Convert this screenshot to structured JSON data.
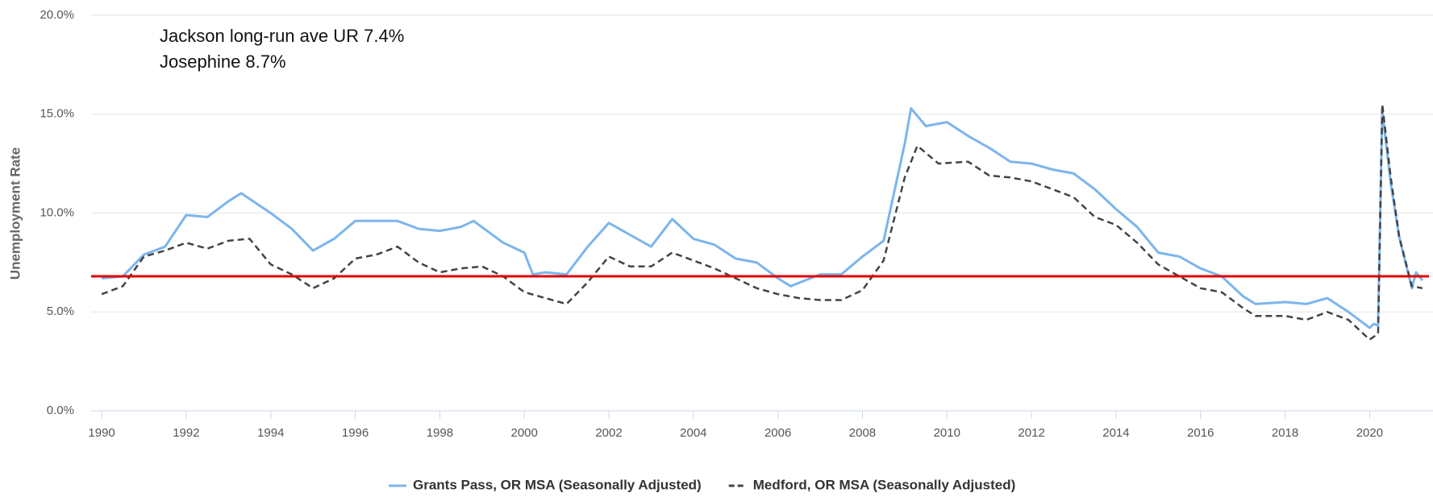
{
  "chart_data": {
    "type": "line",
    "y_label": "Unemployment Rate",
    "annotations": [
      "Jackson long-run ave UR 7.4%",
      "Josephine 8.7%"
    ],
    "reference_line": {
      "value": 6.8,
      "color": "#e00000"
    },
    "xlim": [
      1989.75,
      2021.5
    ],
    "ylim": [
      0,
      20
    ],
    "xticks": [
      1990,
      1992,
      1994,
      1996,
      1998,
      2000,
      2002,
      2004,
      2006,
      2008,
      2010,
      2012,
      2014,
      2016,
      2018,
      2020
    ],
    "yticks": [
      {
        "value": 0,
        "label": "0.0%"
      },
      {
        "value": 5,
        "label": "5.0%"
      },
      {
        "value": 10,
        "label": "10.0%"
      },
      {
        "value": 15,
        "label": "15.0%"
      },
      {
        "value": 20,
        "label": "20.0%"
      }
    ],
    "grid": true,
    "legend": "bottom",
    "series": [
      {
        "name": "Grants Pass, OR MSA (Seasonally Adjusted)",
        "color": "#7cb5ec",
        "dash": false,
        "x": [
          1990,
          1990.5,
          1991,
          1991.5,
          1992,
          1992.5,
          1993,
          1993.3,
          1994,
          1994.5,
          1995,
          1995.5,
          1996,
          1996.5,
          1997,
          1997.5,
          1998,
          1998.5,
          1998.8,
          1999.5,
          2000,
          2000.2,
          2000.5,
          2001,
          2001.5,
          2002,
          2002.5,
          2003,
          2003.5,
          2004,
          2004.5,
          2005,
          2005.5,
          2006,
          2006.3,
          2007,
          2007.5,
          2008,
          2008.5,
          2009,
          2009.15,
          2009.5,
          2010,
          2010.5,
          2011,
          2011.5,
          2012,
          2012.5,
          2013,
          2013.5,
          2014,
          2014.5,
          2015,
          2015.5,
          2016,
          2016.5,
          2017,
          2017.3,
          2018,
          2018.5,
          2019,
          2019.5,
          2020,
          2020.1,
          2020.2,
          2020.3,
          2020.5,
          2020.7,
          2021,
          2021.1,
          2021.25
        ],
        "values": [
          6.7,
          6.8,
          7.9,
          8.3,
          9.9,
          9.8,
          10.6,
          11.0,
          10.0,
          9.2,
          8.1,
          8.7,
          9.6,
          9.6,
          9.6,
          9.2,
          9.1,
          9.3,
          9.6,
          8.5,
          8.0,
          6.9,
          7.0,
          6.9,
          8.3,
          9.5,
          8.9,
          8.3,
          9.7,
          8.7,
          8.4,
          7.7,
          7.5,
          6.7,
          6.3,
          6.9,
          6.9,
          7.8,
          8.6,
          13.5,
          15.3,
          14.4,
          14.6,
          13.9,
          13.3,
          12.6,
          12.5,
          12.2,
          12.0,
          11.2,
          10.2,
          9.3,
          8.0,
          7.8,
          7.2,
          6.8,
          5.8,
          5.4,
          5.5,
          5.4,
          5.7,
          5.0,
          4.2,
          4.4,
          4.3,
          15.2,
          11.5,
          8.8,
          6.2,
          7.0,
          6.6
        ]
      },
      {
        "name": "Medford, OR MSA (Seasonally Adjusted)",
        "color": "#434348",
        "dash": true,
        "x": [
          1990,
          1990.5,
          1991,
          1991.5,
          1992,
          1992.5,
          1993,
          1993.5,
          1994,
          1994.5,
          1995,
          1995.5,
          1996,
          1996.5,
          1997,
          1997.5,
          1998,
          1998.5,
          1999,
          1999.5,
          2000,
          2000.5,
          2001,
          2001.5,
          2002,
          2002.5,
          2003,
          2003.5,
          2004,
          2004.5,
          2005,
          2005.5,
          2006,
          2006.5,
          2007,
          2007.5,
          2008,
          2008.5,
          2009,
          2009.3,
          2009.8,
          2010.5,
          2011,
          2011.5,
          2012,
          2012.5,
          2013,
          2013.5,
          2014,
          2014.5,
          2015,
          2015.5,
          2016,
          2016.5,
          2017,
          2017.3,
          2018,
          2018.5,
          2019,
          2019.5,
          2020,
          2020.2,
          2020.3,
          2020.5,
          2020.7,
          2021,
          2021.25
        ],
        "values": [
          5.9,
          6.3,
          7.8,
          8.1,
          8.5,
          8.2,
          8.6,
          8.7,
          7.4,
          6.9,
          6.2,
          6.7,
          7.7,
          7.9,
          8.3,
          7.5,
          7.0,
          7.2,
          7.3,
          6.8,
          6.0,
          5.7,
          5.4,
          6.5,
          7.8,
          7.3,
          7.3,
          8.0,
          7.6,
          7.2,
          6.7,
          6.2,
          5.9,
          5.7,
          5.6,
          5.6,
          6.1,
          7.6,
          11.8,
          13.4,
          12.5,
          12.6,
          11.9,
          11.8,
          11.6,
          11.2,
          10.8,
          9.8,
          9.4,
          8.5,
          7.4,
          6.8,
          6.2,
          6.0,
          5.2,
          4.8,
          4.8,
          4.6,
          5.0,
          4.6,
          3.6,
          3.9,
          15.5,
          11.8,
          8.8,
          6.3,
          6.2
        ]
      }
    ]
  }
}
